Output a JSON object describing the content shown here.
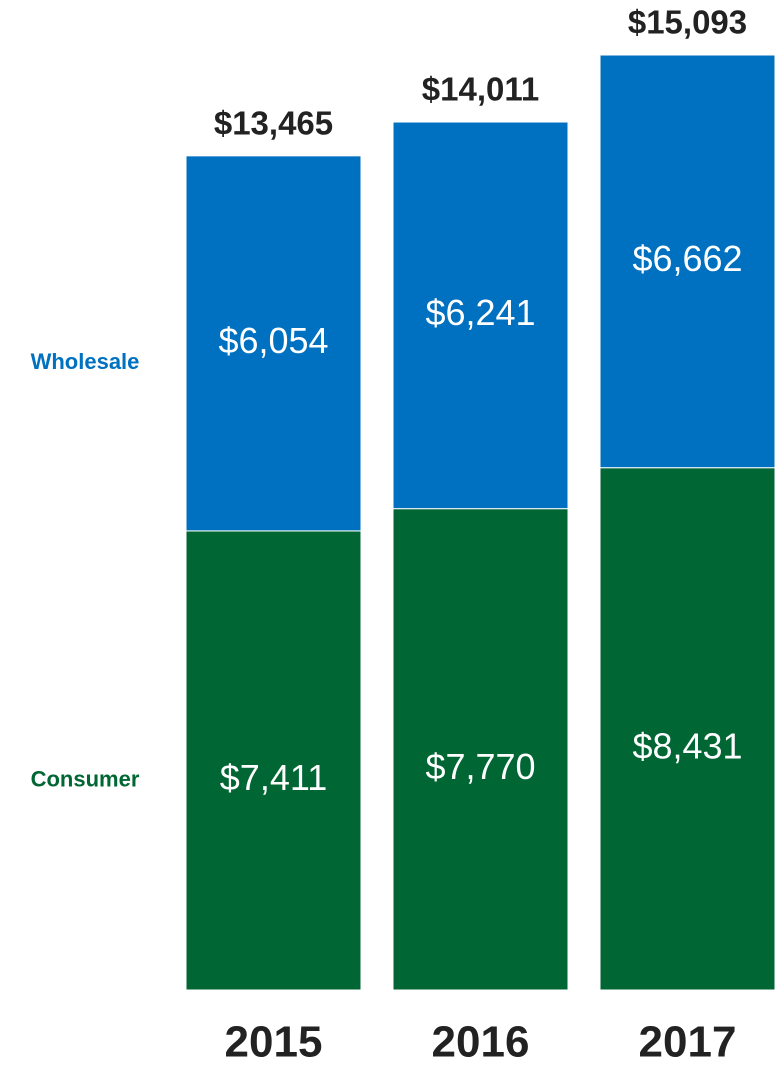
{
  "chart_data": {
    "type": "stacked_bar",
    "categories": [
      "2015",
      "2016",
      "2017"
    ],
    "series": [
      {
        "name": "Consumer",
        "color": "#006633",
        "values": [
          7411,
          7770,
          8431
        ],
        "value_labels": [
          "$7,411",
          "$7,770",
          "$8,431"
        ]
      },
      {
        "name": "Wholesale",
        "color": "#0070c0",
        "values": [
          6054,
          6241,
          6662
        ],
        "value_labels": [
          "$6,054",
          "$6,241",
          "$6,662"
        ]
      }
    ],
    "totals": [
      13465,
      14011,
      15093
    ],
    "total_labels": [
      "$13,465",
      "$14,011",
      "$15,093"
    ]
  }
}
